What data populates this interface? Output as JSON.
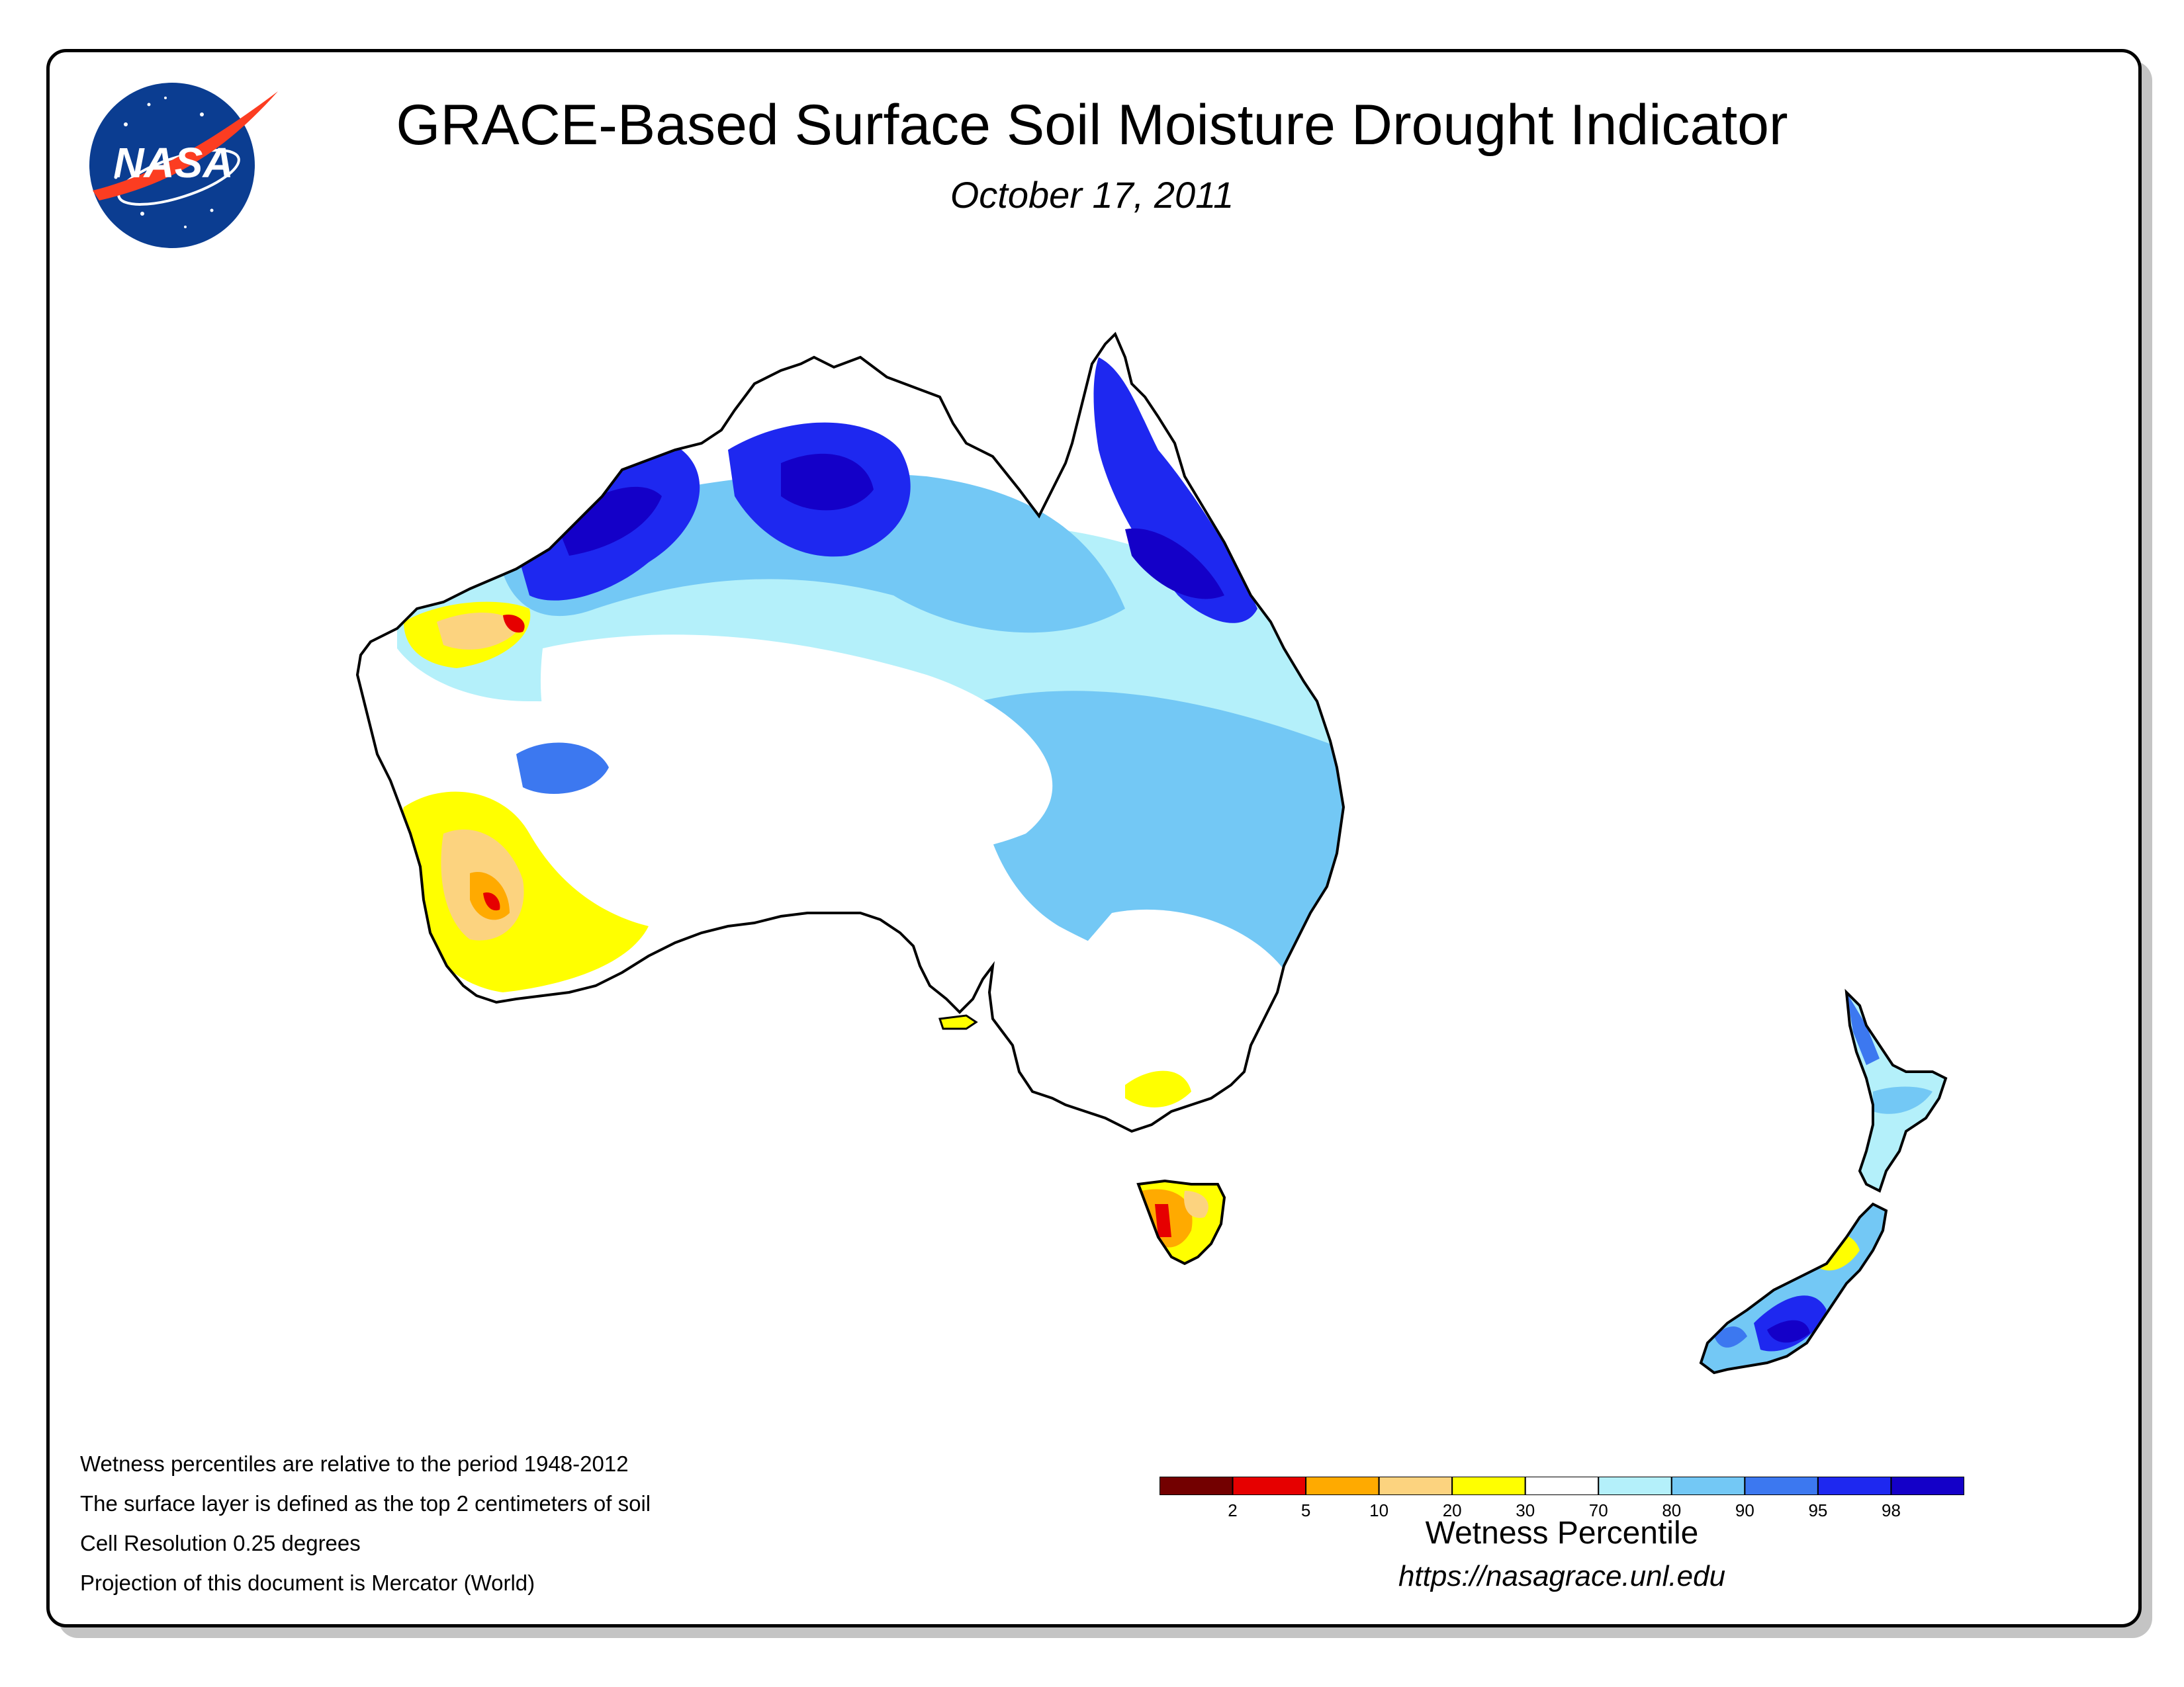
{
  "header": {
    "title": "GRACE-Based Surface Soil Moisture Drought Indicator",
    "date": "October 17, 2011"
  },
  "logo": {
    "text": "NASA",
    "icon": "nasa-meatball-icon"
  },
  "notes": [
    "Wetness percentiles are relative to the period 1948-2012",
    "The surface layer is defined as the top 2 centimeters of soil",
    "Cell Resolution 0.25 degrees",
    "Projection of this document is Mercator (World)"
  ],
  "legend": {
    "title": "Wetness Percentile",
    "url": "https://nasagrace.unl.edu",
    "colors": [
      "#730000",
      "#e60000",
      "#ffaa00",
      "#fcd37f",
      "#ffff00",
      "#ffffff",
      "#b4f0fa",
      "#73c8f5",
      "#3c78f0",
      "#1e28f0",
      "#1400c8"
    ],
    "tick_labels": [
      "2",
      "5",
      "10",
      "20",
      "30",
      "70",
      "80",
      "90",
      "95",
      "98"
    ]
  }
}
